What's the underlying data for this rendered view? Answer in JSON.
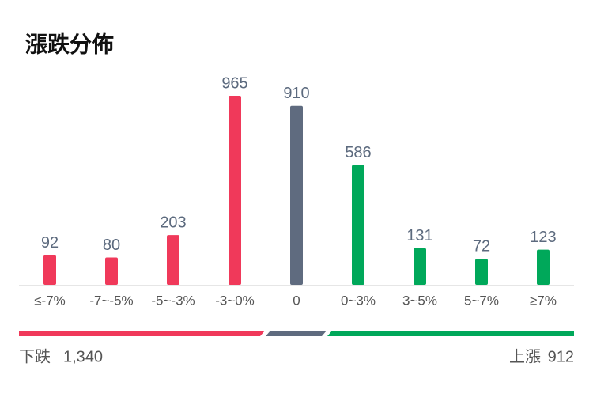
{
  "chart_data": {
    "type": "bar",
    "title": "漲跌分佈",
    "categories": [
      "≤-7%",
      "-7~-5%",
      "-5~-3%",
      "-3~0%",
      "0",
      "0~3%",
      "3~5%",
      "5~7%",
      "≥7%"
    ],
    "values": [
      92,
      80,
      203,
      965,
      910,
      586,
      131,
      72,
      123
    ],
    "colors": [
      "#f0395a",
      "#f0395a",
      "#f0395a",
      "#f0395a",
      "#5f6b7f",
      "#00a85a",
      "#00a85a",
      "#00a85a",
      "#00a85a"
    ],
    "summary": {
      "down_label": "下跌",
      "down": {
        "value": 1340,
        "label": "1,340"
      },
      "up_label": "上漲",
      "up": 912
    }
  }
}
